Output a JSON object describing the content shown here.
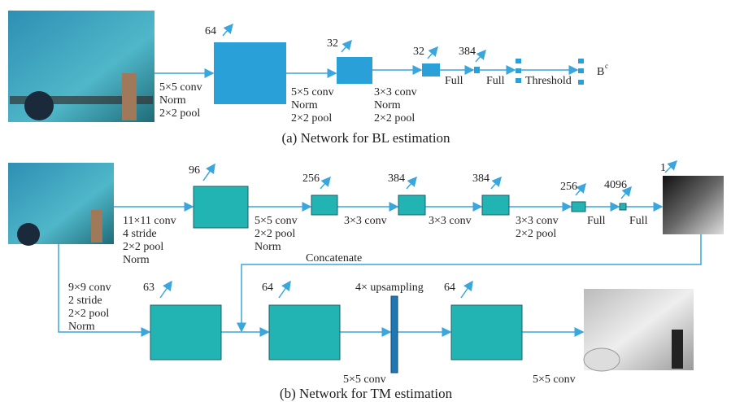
{
  "bl_network": {
    "caption": "(a) Network for BL estimation",
    "channels": [
      "64",
      "32",
      "32",
      "384"
    ],
    "operations": [
      [
        "5×5 conv",
        "Norm",
        "2×2 pool"
      ],
      [
        "5×5 conv",
        "Norm",
        "2×2 pool"
      ],
      [
        "3×3 conv",
        "Norm",
        "2×2 pool"
      ],
      [
        "Full"
      ],
      [
        "Full"
      ],
      [
        "Threshold"
      ]
    ],
    "output": "B",
    "output_superscript": "c"
  },
  "tm_network": {
    "caption": "(b) Network for TM estimation",
    "channels": [
      "96",
      "256",
      "384",
      "384",
      "256",
      "4096",
      "1"
    ],
    "operations": [
      [
        "11×11 conv",
        "4 stride",
        "2×2 pool",
        "Norm"
      ],
      [
        "5×5 conv",
        "2×2 pool",
        "Norm"
      ],
      [
        "3×3 conv"
      ],
      [
        "3×3 conv"
      ],
      [
        "3×3 conv",
        "2×2 pool"
      ],
      [
        "Full"
      ],
      [
        "Full"
      ]
    ],
    "concatenate": "Concatenate",
    "refine_channels": [
      "63",
      "64",
      "64"
    ],
    "refine_operations": [
      [
        "9×9 conv",
        "2 stride",
        "2×2 pool",
        "Norm"
      ],
      [
        "4× upsampling"
      ],
      [
        "5×5 conv"
      ],
      [
        "5×5 conv"
      ]
    ]
  }
}
